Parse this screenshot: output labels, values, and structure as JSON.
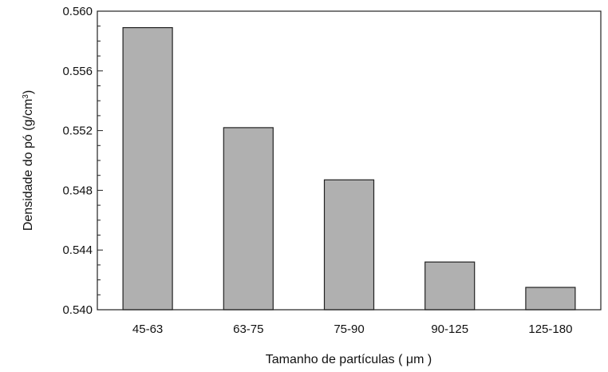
{
  "chart_data": {
    "type": "bar",
    "categories": [
      "45-63",
      "63-75",
      "75-90",
      "90-125",
      "125-180"
    ],
    "values": [
      0.5589,
      0.5522,
      0.5487,
      0.5432,
      0.5415
    ],
    "xlabel": "Tamanho de partículas ( μm )",
    "ylabel_main": "Densidade do pó (g/cm",
    "ylabel_sup": "3",
    "ylabel_close": ")",
    "ylim": [
      0.54,
      0.56
    ],
    "yticks": [
      "0.540",
      "0.544",
      "0.548",
      "0.552",
      "0.556",
      "0.560"
    ],
    "bar_color": "#b0b0b0",
    "bar_edge_color": "#222222",
    "grid": false,
    "legend": "none"
  }
}
